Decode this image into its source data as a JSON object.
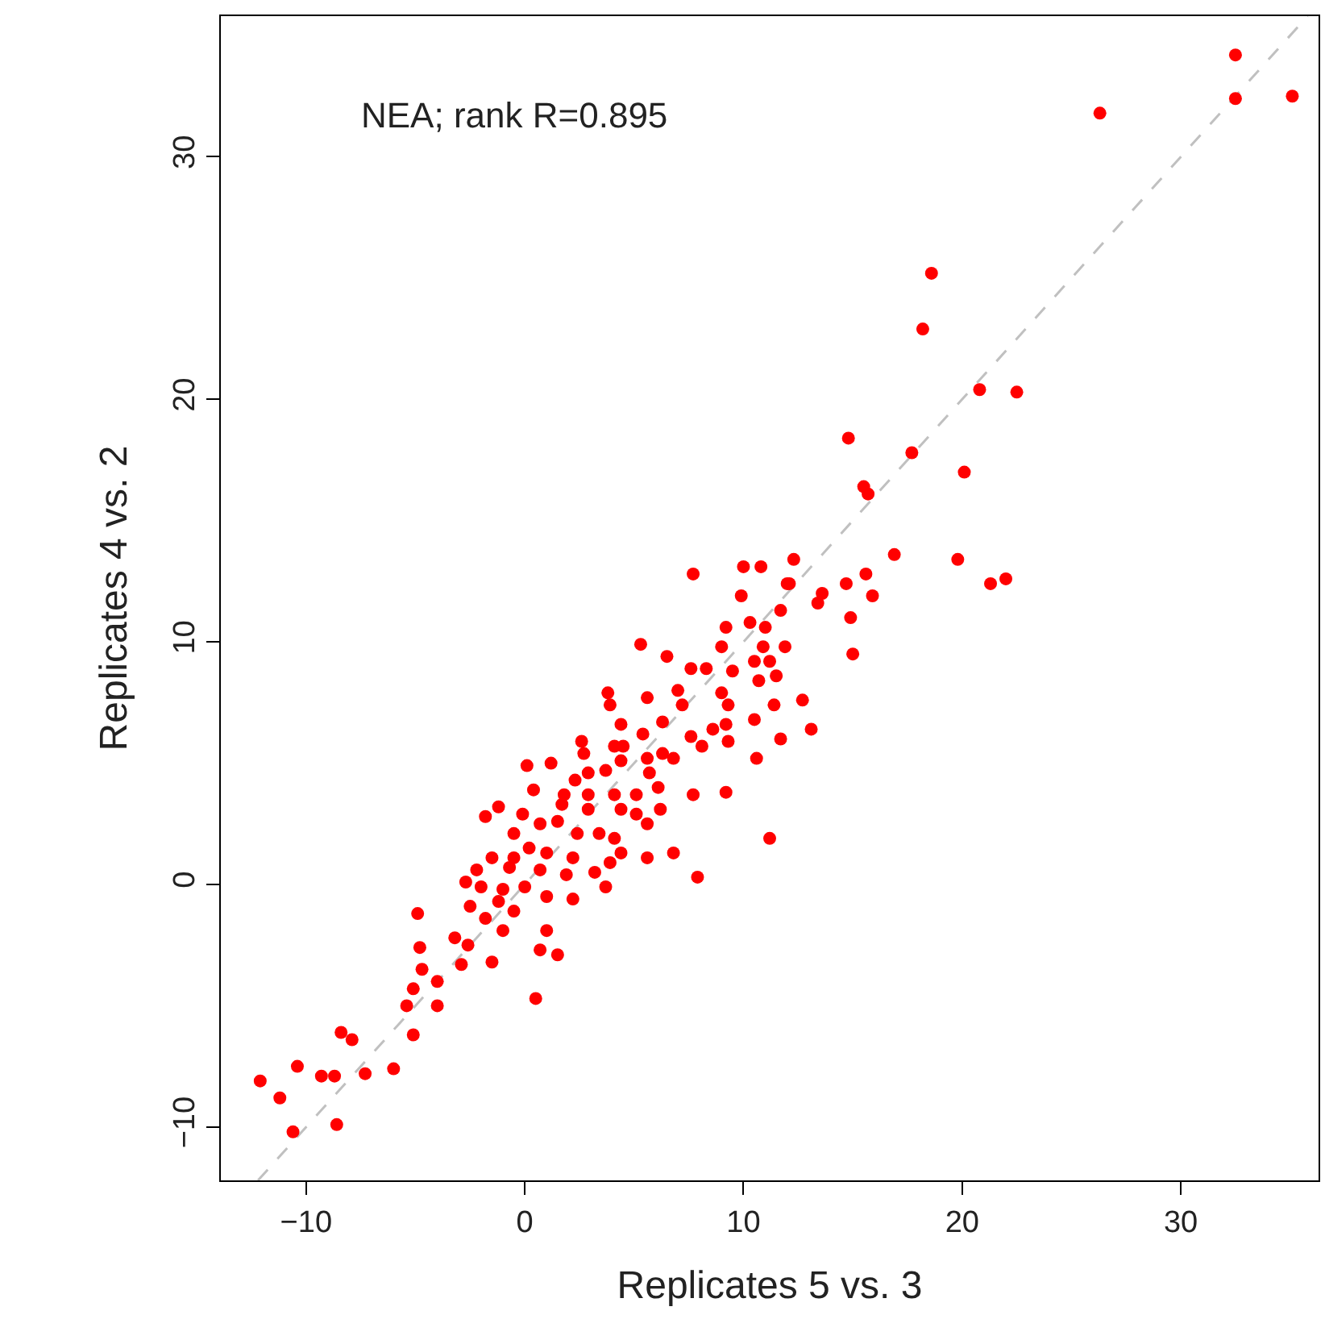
{
  "chart_data": {
    "type": "scatter",
    "xlabel": "Replicates 5 vs. 3",
    "ylabel": "Replicates 4 vs. 2",
    "annotations": [
      "NEA; rank R=0.895"
    ],
    "xlim": [
      -13.9,
      36.3
    ],
    "ylim": [
      -12.2,
      35.8
    ],
    "xticks": [
      -10,
      0,
      10,
      20,
      30
    ],
    "yticks": [
      -10,
      0,
      10,
      20,
      30
    ],
    "marker": "circle",
    "series": [
      {
        "type": "line",
        "color": "#c0c0c0",
        "line_style": "dashed",
        "marker": "none",
        "x": [
          -12.2,
          35.8
        ],
        "values": [
          -12.2,
          35.8
        ]
      },
      {
        "color": "#ff0000",
        "x": [
          32.5,
          32.5,
          35.1,
          26.3,
          18.6,
          18.2,
          20.8,
          22.5,
          17.7,
          14.8,
          15.5,
          15.7,
          20.1,
          19.8,
          22.0,
          21.3,
          16.9,
          15.6,
          15.9,
          14.7,
          14.9,
          15.0,
          13.6,
          12.3,
          10.8,
          10.0,
          7.7,
          12.0,
          13.4,
          9.9,
          12.1,
          11.7,
          9.2,
          10.3,
          11.0,
          5.3,
          6.5,
          9.0,
          10.9,
          11.9,
          7.6,
          8.3,
          9.5,
          10.5,
          11.2,
          11.5,
          10.7,
          3.8,
          3.9,
          5.6,
          7.0,
          7.2,
          9.0,
          9.3,
          11.4,
          12.7,
          10.5,
          13.1,
          11.7,
          9.3,
          8.6,
          9.2,
          6.3,
          5.4,
          4.4,
          7.6,
          8.1,
          2.6,
          2.7,
          4.1,
          4.5,
          6.3,
          6.8,
          5.6,
          10.6,
          0.1,
          1.2,
          2.3,
          2.9,
          3.7,
          4.4,
          5.7,
          6.1,
          7.7,
          9.2,
          0.4,
          1.8,
          2.9,
          4.1,
          5.1,
          6.2,
          -1.8,
          -1.2,
          -0.1,
          1.7,
          2.9,
          4.4,
          5.1,
          5.6,
          -0.5,
          0.7,
          1.5,
          2.4,
          3.4,
          4.1,
          11.2,
          6.8,
          5.6,
          4.4,
          3.9,
          2.2,
          1.0,
          0.2,
          -0.5,
          -1.5,
          -0.7,
          0.7,
          1.9,
          3.2,
          7.9,
          3.7,
          -2.2,
          -2.7,
          -2.0,
          -1.0,
          0.0,
          1.0,
          2.2,
          -1.2,
          -2.5,
          -0.5,
          -1.8,
          -1.0,
          1.0,
          -4.9,
          -3.2,
          -2.6,
          -4.8,
          -1.5,
          -2.9,
          0.7,
          1.5,
          -4.7,
          -4.0,
          -5.1,
          0.5,
          -5.4,
          -4.0,
          -12.1,
          -11.2,
          -10.6,
          -10.4,
          -9.3,
          -8.7,
          -8.6,
          -8.4,
          -7.9,
          -7.3,
          -6.0,
          -5.1
        ],
        "values": [
          34.2,
          32.4,
          32.5,
          31.8,
          25.2,
          22.9,
          20.4,
          20.3,
          17.8,
          18.4,
          16.4,
          16.1,
          17.0,
          13.4,
          12.6,
          12.4,
          13.6,
          12.8,
          11.9,
          12.4,
          11.0,
          9.5,
          12.0,
          13.4,
          13.1,
          13.1,
          12.8,
          12.4,
          11.6,
          11.9,
          12.4,
          11.3,
          10.6,
          10.8,
          10.6,
          9.9,
          9.4,
          9.8,
          9.8,
          9.8,
          8.9,
          8.9,
          8.8,
          9.2,
          9.2,
          8.6,
          8.4,
          7.9,
          7.4,
          7.7,
          8.0,
          7.4,
          7.9,
          7.4,
          7.4,
          7.6,
          6.8,
          6.4,
          6.0,
          5.9,
          6.4,
          6.6,
          6.7,
          6.2,
          6.6,
          6.1,
          5.7,
          5.9,
          5.4,
          5.7,
          5.7,
          5.4,
          5.2,
          5.2,
          5.2,
          4.9,
          5.0,
          4.3,
          4.6,
          4.7,
          5.1,
          4.6,
          4.0,
          3.7,
          3.8,
          3.9,
          3.7,
          3.7,
          3.7,
          3.7,
          3.1,
          2.8,
          3.2,
          2.9,
          3.3,
          3.1,
          3.1,
          2.9,
          2.5,
          2.1,
          2.5,
          2.6,
          2.1,
          2.1,
          1.9,
          1.9,
          1.3,
          1.1,
          1.3,
          0.9,
          1.1,
          1.3,
          1.5,
          1.1,
          1.1,
          0.7,
          0.6,
          0.4,
          0.5,
          0.3,
          -0.1,
          0.6,
          0.1,
          -0.1,
          -0.2,
          -0.1,
          -0.5,
          -0.6,
          -0.7,
          -0.9,
          -1.1,
          -1.4,
          -1.9,
          -1.9,
          -1.2,
          -2.2,
          -2.5,
          -2.6,
          -3.2,
          -3.3,
          -2.7,
          -2.9,
          -3.5,
          -4.0,
          -4.3,
          -4.7,
          -5.0,
          -5.0,
          -8.1,
          -8.8,
          -10.2,
          -7.5,
          -7.9,
          -7.9,
          -9.9,
          -6.1,
          -6.4,
          -7.8,
          -7.6,
          -6.2
        ]
      }
    ]
  }
}
